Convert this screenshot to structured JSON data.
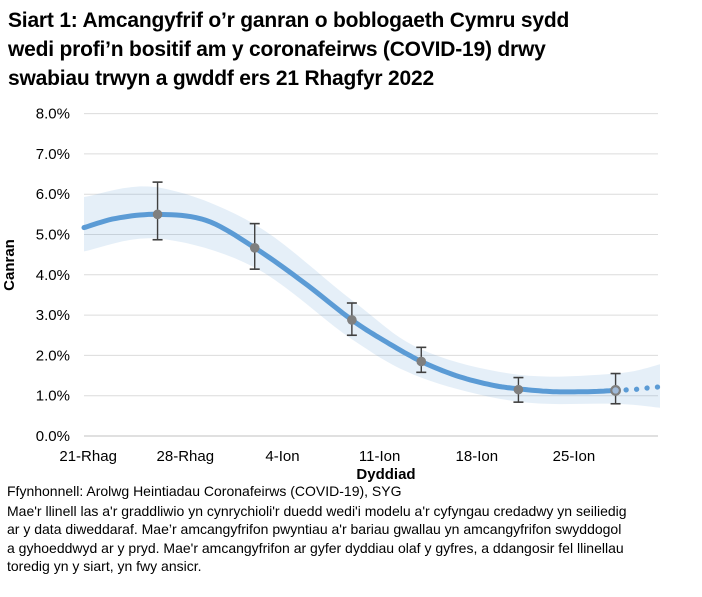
{
  "title": "Siart 1: Amcangyfrif o’r ganran o boblogaeth Cymru sydd\nwedi profi’n bositif am y coronafeirws (COVID-19) drwy\nswabiau trwyn a gwddf ers 21 Rhagfyr 2022",
  "chart_data": {
    "type": "line",
    "title": "Siart 1: Amcangyfrif o’r ganran o boblogaeth Cymru sydd wedi profi’n bositif am y coronafeirws (COVID-19) drwy swabiau trwyn a gwddf ers 21 Rhagfyr 2022",
    "xlabel": "Dyddiad",
    "ylabel": "Canran",
    "x_tick_labels": [
      "21-Rhag",
      "28-Rhag",
      "4-Ion",
      "11-Ion",
      "18-Ion",
      "25-Ion"
    ],
    "x_tick_days": [
      0,
      7,
      14,
      21,
      28,
      35
    ],
    "y_tick_labels": [
      "0.0%",
      "1.0%",
      "2.0%",
      "3.0%",
      "4.0%",
      "5.0%",
      "6.0%",
      "7.0%",
      "8.0%"
    ],
    "ylim": [
      0,
      8
    ],
    "xlim_days": [
      -0.3,
      41.2
    ],
    "grid": "horizontal",
    "legend": "none",
    "series": [
      {
        "name": "modelled-trend-solid",
        "style": "solid",
        "x_days": [
          -0.3,
          2,
          5,
          8.5,
          12,
          15.5,
          19,
          21.5,
          24,
          26.5,
          29,
          31,
          33.5,
          36,
          38
        ],
        "values": [
          5.17,
          5.4,
          5.5,
          5.35,
          4.67,
          3.82,
          2.88,
          2.33,
          1.85,
          1.5,
          1.27,
          1.17,
          1.1,
          1.1,
          1.13
        ]
      },
      {
        "name": "modelled-trend-dotted-more-uncertain",
        "style": "dotted",
        "x_days": [
          38,
          39.5,
          40.5,
          41.2
        ],
        "values": [
          1.13,
          1.16,
          1.2,
          1.22
        ]
      },
      {
        "name": "credible-interval-band",
        "style": "band",
        "x_days": [
          -0.3,
          5,
          12,
          19,
          24,
          31,
          38,
          41.2
        ],
        "upper": [
          5.93,
          6.17,
          5.25,
          3.37,
          2.15,
          1.52,
          1.55,
          1.78
        ],
        "lower": [
          4.58,
          4.9,
          4.18,
          2.4,
          1.45,
          0.85,
          0.8,
          0.7
        ]
      },
      {
        "name": "official-point-estimates-with-error-bars",
        "style": "scatter",
        "points": [
          {
            "x_day": 5,
            "value": 5.5,
            "lo": 4.87,
            "hi": 6.3,
            "marker": "filled"
          },
          {
            "x_day": 12,
            "value": 4.67,
            "lo": 4.14,
            "hi": 5.27,
            "marker": "filled"
          },
          {
            "x_day": 19,
            "value": 2.88,
            "lo": 2.5,
            "hi": 3.3,
            "marker": "filled"
          },
          {
            "x_day": 24,
            "value": 1.85,
            "lo": 1.58,
            "hi": 2.2,
            "marker": "filled"
          },
          {
            "x_day": 31,
            "value": 1.15,
            "lo": 0.84,
            "hi": 1.45,
            "marker": "filled"
          },
          {
            "x_day": 38,
            "value": 1.13,
            "lo": 0.8,
            "hi": 1.55,
            "marker": "ring"
          }
        ]
      }
    ],
    "colors": {
      "line": "#5B9BD5",
      "band": "rgba(91,155,213,0.16)",
      "marker": "#7F7F7F",
      "ring_fill": "#9FB9D8",
      "error_bar": "#404040",
      "gridline": "#DCDCDC",
      "axis_line": "#C0C0C0",
      "text": "#000000"
    }
  },
  "footer": {
    "source": "Ffynhonnell: Arolwg Heintiadau Coronafeirws (COVID-19), SYG",
    "note": "Mae'r llinell las a'r graddliwio yn cynrychioli'r duedd wedi'i modelu a'r cyfyngau credadwy yn seiliedig\nar y data diweddaraf. Mae’r amcangyfrifon pwyntiau a'r bariau gwallau yn amcangyfrifon swyddogol\na gyhoeddwyd ar y pryd. Mae'r amcangyfrifon ar gyfer dyddiau olaf y gyfres, a ddangosir fel llinellau\ntoredig yn y siart, yn fwy ansicr."
  }
}
